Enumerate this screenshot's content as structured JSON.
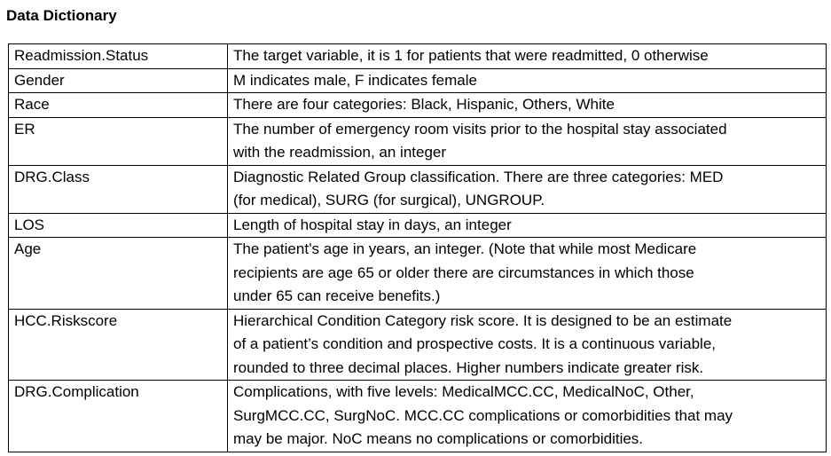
{
  "title": "Data Dictionary",
  "rows": [
    {
      "term": "Readmission.Status",
      "lines": [
        "The target variable, it is 1 for patients that were readmitted, 0 otherwise"
      ]
    },
    {
      "term": "Gender",
      "lines": [
        "M indicates male, F indicates female"
      ]
    },
    {
      "term": "Race",
      "lines": [
        "There are four categories: Black, Hispanic, Others, White"
      ]
    },
    {
      "term": "ER",
      "lines": [
        "The number of emergency room visits prior to the hospital stay associated",
        "with the readmission, an integer"
      ]
    },
    {
      "term": "DRG.Class",
      "lines": [
        "Diagnostic Related Group classification. There are three categories: MED",
        "(for medical), SURG (for surgical), UNGROUP."
      ]
    },
    {
      "term": "LOS",
      "lines": [
        "Length of hospital stay in days, an integer"
      ]
    },
    {
      "term": "Age",
      "lines": [
        "The patient’s age in years, an integer. (Note that while most Medicare",
        "recipients are age 65 or older there are circumstances in which those",
        "under 65 can receive benefits.)"
      ]
    },
    {
      "term": "HCC.Riskscore",
      "lines": [
        "Hierarchical Condition Category risk score. It is designed to be an estimate",
        "of a patient’s condition and prospective costs. It is a continuous variable,",
        "rounded to three decimal places. Higher numbers indicate greater risk."
      ]
    },
    {
      "term": "DRG.Complication",
      "lines": [
        "Complications, with five levels: MedicalMCC.CC, MedicalNoC, Other,",
        "SurgMCC.CC, SurgNoC. MCC.CC complications or comorbidities that may",
        "may be major. NoC means no complications or comorbidities."
      ]
    }
  ]
}
